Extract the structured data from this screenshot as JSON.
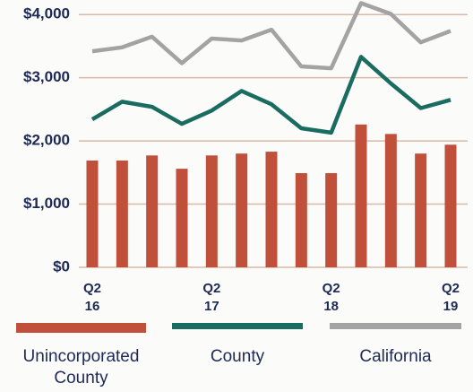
{
  "chart_data": {
    "type": "bar_line",
    "categories": [
      "Q2 16",
      null,
      null,
      null,
      "Q2 17",
      null,
      null,
      null,
      "Q2 18",
      null,
      null,
      null,
      "Q2 19"
    ],
    "series": [
      {
        "name": "Unincorporated County",
        "type": "bar",
        "color": "#c0503a",
        "values": [
          1690,
          1690,
          1770,
          1560,
          1770,
          1800,
          1830,
          1490,
          1490,
          2260,
          2110,
          1800,
          1940
        ]
      },
      {
        "name": "County",
        "type": "line",
        "color": "#1a6b60",
        "values": [
          2340,
          2620,
          2540,
          2270,
          2480,
          2790,
          2580,
          2200,
          2130,
          3330,
          2910,
          2520,
          2650
        ]
      },
      {
        "name": "California",
        "type": "line",
        "color": "#a3a3a3",
        "values": [
          3420,
          3480,
          3650,
          3230,
          3620,
          3590,
          3760,
          3180,
          3150,
          4180,
          4010,
          3560,
          3740
        ]
      }
    ],
    "ylim": [
      0,
      4230
    ],
    "yticks": [
      {
        "value": 0,
        "label": "$0"
      },
      {
        "value": 1000,
        "label": "$1,000"
      },
      {
        "value": 2000,
        "label": "$2,000"
      },
      {
        "value": 3000,
        "label": "$3,000"
      },
      {
        "value": 4000,
        "label": "$4,000"
      }
    ],
    "grid": true
  }
}
